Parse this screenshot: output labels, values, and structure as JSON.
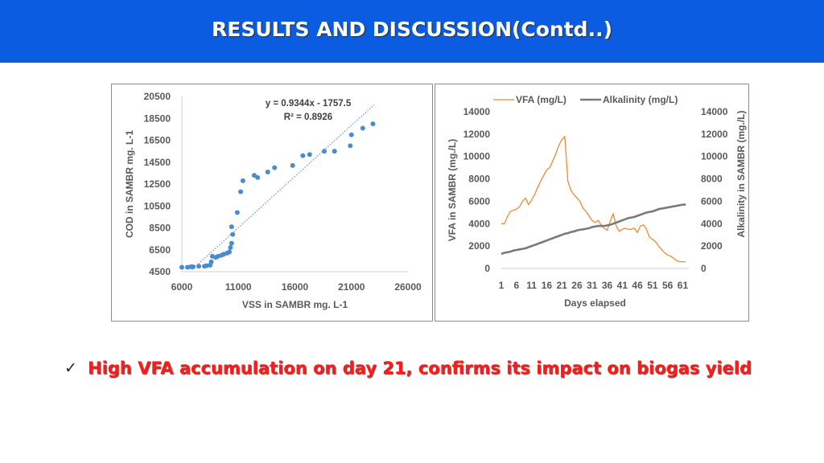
{
  "slide": {
    "title": "RESULTS AND DISCUSSION(Contd..)",
    "bullet_text": "High VFA accumulation on day 21, confirms its impact on biogas yield",
    "check_icon": "check-icon",
    "colors": {
      "header": "#0b5ce0",
      "bullet": "#ff1a1a"
    }
  },
  "chart_data": [
    {
      "type": "scatter",
      "xlabel": "VSS in SAMBR mg. L-1",
      "ylabel": "COD in SAMBR mg. L-1",
      "xlim": [
        6000,
        26000
      ],
      "ylim": [
        4500,
        20500
      ],
      "xticks": [
        "6000",
        "11000",
        "16000",
        "21000",
        "26000"
      ],
      "yticks": [
        "4500",
        "6500",
        "8500",
        "10500",
        "12500",
        "14500",
        "16500",
        "18500",
        "20500"
      ],
      "grid": false,
      "equation": "y = 0.9344x - 1757.5",
      "r_squared": "R² = 0.8926",
      "trendline": {
        "slope": 0.9344,
        "intercept": -1757.5,
        "x_from": 6900,
        "x_to": 23000
      },
      "point_color": "#4a8bd0",
      "points": [
        [
          6000,
          4900
        ],
        [
          6500,
          4900
        ],
        [
          6800,
          4950
        ],
        [
          7000,
          4950
        ],
        [
          7500,
          5000
        ],
        [
          8000,
          5000
        ],
        [
          8200,
          5050
        ],
        [
          8500,
          5100
        ],
        [
          8600,
          5400
        ],
        [
          8700,
          5900
        ],
        [
          9000,
          5800
        ],
        [
          9200,
          5900
        ],
        [
          9500,
          6000
        ],
        [
          9700,
          6100
        ],
        [
          10000,
          6200
        ],
        [
          10200,
          6300
        ],
        [
          10300,
          6700
        ],
        [
          10400,
          7100
        ],
        [
          10500,
          7900
        ],
        [
          10400,
          8600
        ],
        [
          10900,
          9900
        ],
        [
          11200,
          11800
        ],
        [
          11400,
          12800
        ],
        [
          12400,
          13300
        ],
        [
          12700,
          13100
        ],
        [
          13600,
          13600
        ],
        [
          14200,
          14000
        ],
        [
          15800,
          14200
        ],
        [
          16700,
          15100
        ],
        [
          17300,
          15200
        ],
        [
          18600,
          15500
        ],
        [
          19500,
          15500
        ],
        [
          20900,
          16000
        ],
        [
          21000,
          17000
        ],
        [
          22000,
          17600
        ],
        [
          22900,
          18000
        ]
      ]
    },
    {
      "type": "line",
      "xlabel": "Days elapsed",
      "ylabel": "VFA in SAMBR (mg./L)",
      "y2label": "Alkalinity in SAMBR (mg./L)",
      "xlim": [
        1,
        63
      ],
      "ylim": [
        0,
        14000
      ],
      "xticks": [
        "1",
        "6",
        "11",
        "16",
        "21",
        "26",
        "31",
        "36",
        "41",
        "46",
        "51",
        "56",
        "61"
      ],
      "yticks": [
        "0",
        "2000",
        "4000",
        "6000",
        "8000",
        "10000",
        "12000",
        "14000"
      ],
      "legend": "top",
      "grid": false,
      "series": [
        {
          "name": "VFA (mg/L)",
          "color": "#ed8a35",
          "x": [
            1,
            2,
            3,
            4,
            5,
            6,
            7,
            8,
            9,
            10,
            11,
            12,
            13,
            14,
            15,
            16,
            17,
            18,
            19,
            20,
            21,
            22,
            23,
            24,
            25,
            26,
            27,
            28,
            29,
            30,
            31,
            32,
            33,
            34,
            35,
            36,
            37,
            38,
            39,
            40,
            41,
            42,
            43,
            44,
            45,
            46,
            47,
            48,
            49,
            50,
            51,
            52,
            53,
            54,
            55,
            56,
            57,
            58,
            59,
            60,
            61,
            62
          ],
          "values": [
            4000,
            4000,
            4600,
            5100,
            5200,
            5300,
            5500,
            6000,
            6300,
            5700,
            6100,
            6600,
            7200,
            7800,
            8300,
            8800,
            9000,
            9600,
            10200,
            11000,
            11500,
            11800,
            7800,
            7000,
            6600,
            6300,
            6000,
            5400,
            5100,
            4700,
            4300,
            4100,
            4300,
            3900,
            3600,
            3400,
            4200,
            4900,
            3800,
            3300,
            3500,
            3600,
            3500,
            3500,
            3600,
            3200,
            3800,
            3900,
            3500,
            2800,
            2600,
            2400,
            2000,
            1700,
            1400,
            1200,
            1100,
            900,
            700,
            600,
            600,
            600
          ]
        },
        {
          "name": "Alkalinity (mg/L)",
          "color": "#7a7a7a",
          "x": [
            1,
            2,
            3,
            4,
            5,
            6,
            7,
            8,
            9,
            10,
            11,
            12,
            13,
            14,
            15,
            16,
            17,
            18,
            19,
            20,
            21,
            22,
            23,
            24,
            25,
            26,
            27,
            28,
            29,
            30,
            31,
            32,
            33,
            34,
            35,
            36,
            37,
            38,
            39,
            40,
            41,
            42,
            43,
            44,
            45,
            46,
            47,
            48,
            49,
            50,
            51,
            52,
            53,
            54,
            55,
            56,
            57,
            58,
            59,
            60,
            61,
            62
          ],
          "values": [
            1300,
            1400,
            1450,
            1500,
            1600,
            1650,
            1700,
            1750,
            1800,
            1900,
            2000,
            2100,
            2200,
            2300,
            2400,
            2500,
            2600,
            2700,
            2800,
            2900,
            3000,
            3100,
            3150,
            3250,
            3300,
            3400,
            3450,
            3500,
            3550,
            3600,
            3700,
            3750,
            3800,
            3800,
            3800,
            3850,
            3900,
            4000,
            4100,
            4200,
            4300,
            4400,
            4500,
            4550,
            4600,
            4700,
            4800,
            4900,
            5000,
            5050,
            5100,
            5200,
            5300,
            5350,
            5400,
            5450,
            5500,
            5550,
            5600,
            5650,
            5700,
            5700
          ]
        }
      ]
    }
  ]
}
